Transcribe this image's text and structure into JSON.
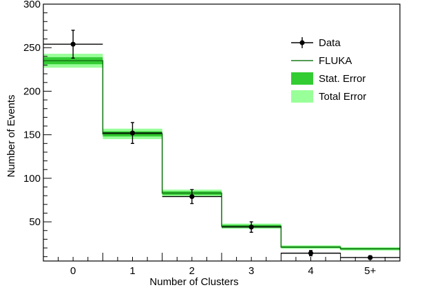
{
  "chart_data": {
    "type": "bar",
    "xlabel": "Number of Clusters",
    "ylabel": "Number of Events",
    "categories": [
      "0",
      "1",
      "2",
      "3",
      "4",
      "5+"
    ],
    "ylim": [
      5,
      300
    ],
    "y_ticks": [
      50,
      100,
      150,
      200,
      250,
      300
    ],
    "legend_position": "top-right",
    "series": [
      {
        "name": "Data",
        "style": "markers-with-errorbars",
        "color": "#000000",
        "values": [
          254,
          152,
          79,
          44,
          14,
          9
        ],
        "errors": [
          16,
          12,
          8,
          6,
          3,
          2
        ]
      },
      {
        "name": "FLUKA",
        "style": "step",
        "color": "#1a7a1a",
        "values": [
          235,
          151,
          83,
          45,
          21,
          19
        ]
      },
      {
        "name": "Stat. Error",
        "style": "band",
        "color": "#33cc33",
        "half_widths": [
          4,
          3,
          2,
          1.5,
          1,
          1
        ]
      },
      {
        "name": "Total Error",
        "style": "band",
        "color": "#99ff99",
        "half_widths": [
          8,
          6,
          4,
          3,
          2,
          2
        ]
      }
    ]
  }
}
